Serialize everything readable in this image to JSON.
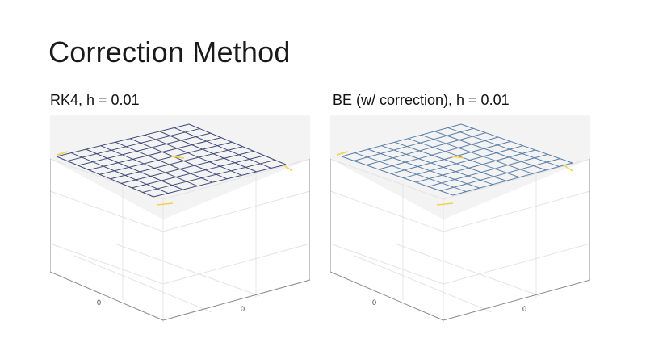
{
  "slide": {
    "title": "Correction Method"
  },
  "colors": {
    "background": "#ffffff",
    "axis_wall": "#f3f3f4",
    "grid_line": "#e0e0e0",
    "axis_line": "#7a7a7a",
    "left_mesh": "#3f4a78",
    "right_mesh": "#5b7fa8",
    "mesh_highlight": "#f2d34b"
  },
  "panels": [
    {
      "title": "RK4, h = 0.01",
      "tick_labels": [
        "0",
        "0"
      ]
    },
    {
      "title": "BE (w/ correction), h = 0.01",
      "tick_labels": [
        "0",
        "0"
      ]
    }
  ]
}
